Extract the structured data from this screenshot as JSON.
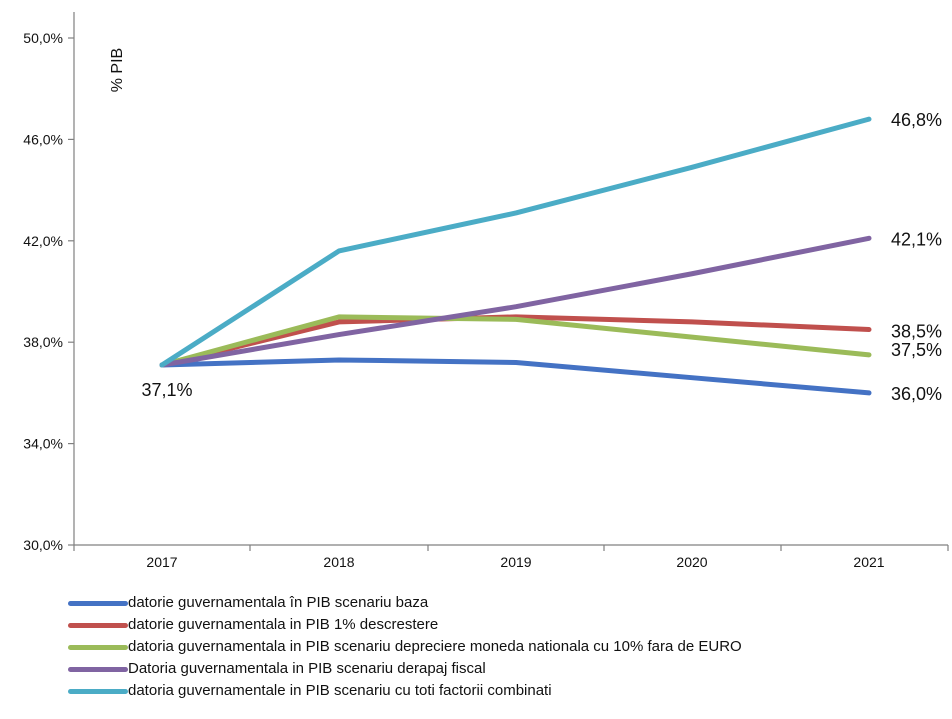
{
  "chart_data": {
    "type": "line",
    "title": "",
    "xlabel": "",
    "ylabel": "% PIB",
    "categories": [
      "2017",
      "2018",
      "2019",
      "2020",
      "2021"
    ],
    "y_ticks": [
      "30,0%",
      "34,0%",
      "38,0%",
      "42,0%",
      "46,0%",
      "50,0%"
    ],
    "ylim": [
      30,
      50
    ],
    "grid": false,
    "legend_position": "bottom",
    "series": [
      {
        "name": "datorie guvernamentala în PIB scenariu baza",
        "color": "#4472c4",
        "values": [
          37.1,
          37.3,
          37.2,
          36.6,
          36.0
        ]
      },
      {
        "name": "datorie guvernamentala in  PIB 1% descrestere",
        "color": "#c0504d",
        "values": [
          37.1,
          38.8,
          39.0,
          38.8,
          38.5
        ]
      },
      {
        "name": "datoria guvernamentala in PIB  scenariu depreciere moneda nationala cu 10% fara de EURO",
        "color": "#9bbb59",
        "values": [
          37.1,
          39.0,
          38.9,
          38.2,
          37.5
        ]
      },
      {
        "name": "Datoria guvernamentala in PIB scenariu derapaj fiscal",
        "color": "#8064a2",
        "values": [
          37.1,
          38.3,
          39.4,
          40.7,
          42.1
        ]
      },
      {
        "name": "datoria guvernamentale in PIB scenariu cu toti factorii combinati",
        "color": "#4bacc6",
        "values": [
          37.1,
          41.6,
          43.1,
          44.9,
          46.8
        ]
      }
    ],
    "data_labels": [
      {
        "text": "37,1%",
        "category": "2017",
        "value": 37.1,
        "position": "below"
      },
      {
        "text": "46,8%",
        "category": "2021",
        "value": 46.8,
        "position": "right"
      },
      {
        "text": "42,1%",
        "category": "2021",
        "value": 42.1,
        "position": "right"
      },
      {
        "text": "38,5%",
        "category": "2021",
        "value": 38.5,
        "position": "right"
      },
      {
        "text": "37,5%",
        "category": "2021",
        "value": 37.5,
        "position": "right"
      },
      {
        "text": "36,0%",
        "category": "2021",
        "value": 36.0,
        "position": "right"
      }
    ]
  }
}
